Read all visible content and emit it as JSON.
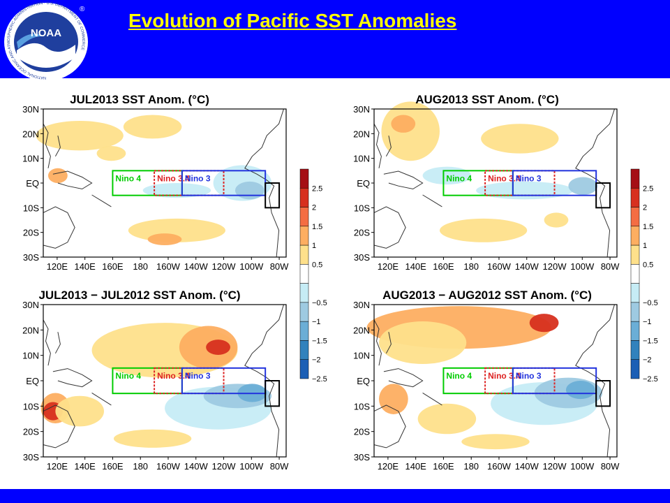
{
  "slide": {
    "title": "Evolution of Pacific SST Anomalies",
    "logo_text": "NOAA",
    "logo_ring_text": "NATIONAL OCEANIC AND ATMOSPHERIC ADMINISTRATION · U.S. DEPARTMENT OF COMMERCE",
    "registered_mark": "®"
  },
  "colors": {
    "bar": "#0000ff",
    "title": "#ffff00",
    "nino4": "#00cc00",
    "nino34": "#dd2222",
    "nino3": "#2233dd",
    "nino12": "#000000"
  },
  "axes": {
    "lat_labels": [
      "30N",
      "20N",
      "10N",
      "EQ",
      "10S",
      "20S",
      "30S"
    ],
    "lon_labels": [
      "120E",
      "140E",
      "160E",
      "180",
      "160W",
      "140W",
      "120W",
      "100W",
      "80W"
    ]
  },
  "regions": {
    "nino4": "Nino 4",
    "nino34": "Nino 3.4",
    "nino3": "Nino 3"
  },
  "colorbar": {
    "levels": [
      {
        "label": "2.5",
        "color": "#a50f15"
      },
      {
        "label": "2",
        "color": "#d7301f"
      },
      {
        "label": "1.5",
        "color": "#f46d43"
      },
      {
        "label": "1",
        "color": "#fdae61"
      },
      {
        "label": "0.5",
        "color": "#fee08b"
      },
      {
        "label": "",
        "color": "#ffffff"
      },
      {
        "label": "−0.5",
        "color": "#c6ecf5"
      },
      {
        "label": "−1",
        "color": "#9ecae1"
      },
      {
        "label": "−1.5",
        "color": "#6baed6"
      },
      {
        "label": "−2",
        "color": "#3182bd"
      },
      {
        "label": "−2.5",
        "color": "#1c5fb5"
      }
    ]
  },
  "panels": [
    {
      "title": "JUL2013 SST Anom. (°C)"
    },
    {
      "title": "AUG2013 SST Anom. (°C)"
    },
    {
      "title": "JUL2013 − JUL2012 SST Anom. (°C)"
    },
    {
      "title": "AUG2013 − AUG2012 SST Anom. (°C)"
    }
  ]
}
